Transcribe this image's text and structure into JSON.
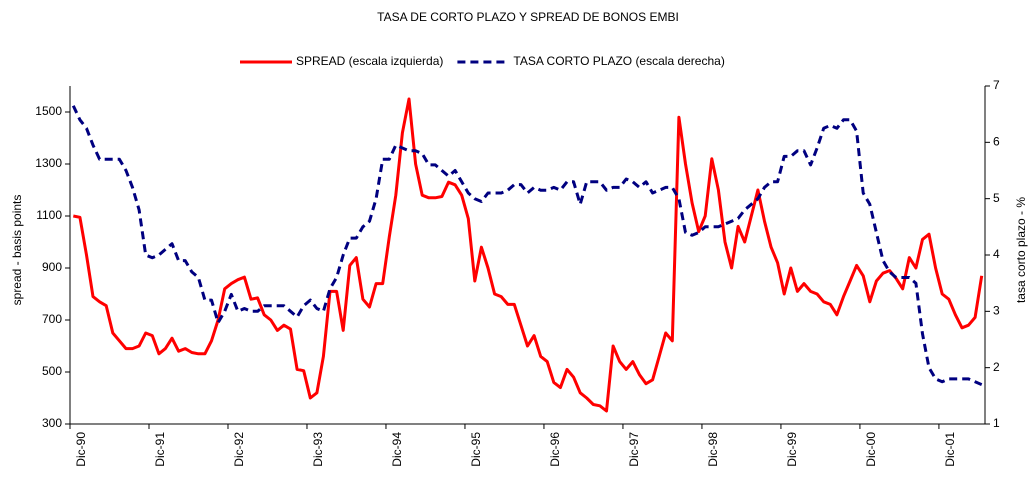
{
  "chart_data": {
    "type": "line",
    "title": "TASA DE CORTO PLAZO Y SPREAD DE BONOS EMBI",
    "y_label": "spread - basis points",
    "y2_label": "tasa corto plazo - %",
    "categories": [
      "Dic-90",
      null,
      null,
      null,
      null,
      null,
      null,
      null,
      null,
      null,
      null,
      null,
      "Dic-91",
      null,
      null,
      null,
      null,
      null,
      null,
      null,
      null,
      null,
      null,
      null,
      "Dic-92",
      null,
      null,
      null,
      null,
      null,
      null,
      null,
      null,
      null,
      null,
      null,
      "Dic-93",
      null,
      null,
      null,
      null,
      null,
      null,
      null,
      null,
      null,
      null,
      null,
      "Dic-94",
      null,
      null,
      null,
      null,
      null,
      null,
      null,
      null,
      null,
      null,
      null,
      "Dic-95",
      null,
      null,
      null,
      null,
      null,
      null,
      null,
      null,
      null,
      null,
      null,
      "Dic-96",
      null,
      null,
      null,
      null,
      null,
      null,
      null,
      null,
      null,
      null,
      null,
      "Dic-97",
      null,
      null,
      null,
      null,
      null,
      null,
      null,
      null,
      null,
      null,
      null,
      "Dic-98",
      null,
      null,
      null,
      null,
      null,
      null,
      null,
      null,
      null,
      null,
      null,
      "Dic-99",
      null,
      null,
      null,
      null,
      null,
      null,
      null,
      null,
      null,
      null,
      null,
      "Dic-00",
      null,
      null,
      null,
      null,
      null,
      null,
      null,
      null,
      null,
      null,
      null,
      "Dic-01",
      null,
      null,
      null,
      null,
      null,
      null
    ],
    "series": [
      {
        "name": "SPREAD (escala izquierda)",
        "color": "#ff0000",
        "dash": false,
        "values": [
          1100,
          1095,
          950,
          790,
          770,
          755,
          650,
          620,
          590,
          590,
          600,
          650,
          640,
          570,
          590,
          630,
          580,
          590,
          575,
          570,
          570,
          620,
          700,
          820,
          840,
          855,
          865,
          780,
          785,
          720,
          700,
          660,
          680,
          665,
          510,
          505,
          400,
          420,
          560,
          810,
          810,
          660,
          910,
          940,
          780,
          750,
          840,
          840,
          1020,
          1180,
          1420,
          1550,
          1300,
          1180,
          1170,
          1170,
          1175,
          1230,
          1220,
          1180,
          1090,
          850,
          980,
          900,
          800,
          790,
          760,
          760,
          680,
          600,
          640,
          560,
          540,
          460,
          440,
          510,
          480,
          420,
          400,
          375,
          370,
          350,
          600,
          540,
          510,
          540,
          490,
          455,
          470,
          560,
          650,
          620,
          1480,
          1300,
          1150,
          1040,
          1100,
          1320,
          1200,
          1000,
          900,
          1060,
          1000,
          1100,
          1200,
          1080,
          980,
          920,
          800,
          900,
          810,
          840,
          810,
          800,
          770,
          760,
          720,
          790,
          850,
          910,
          870,
          770,
          850,
          880,
          890,
          860,
          820,
          940,
          900,
          1010,
          1030,
          900,
          800,
          780,
          720,
          670,
          680,
          710,
          870
        ]
      },
      {
        "name": "TASA CORTO PLAZO (escala derecha)",
        "color": "#000080",
        "dash": true,
        "axis": "y2",
        "values": [
          6.65,
          6.4,
          6.25,
          5.95,
          5.7,
          5.7,
          5.7,
          5.7,
          5.5,
          5.2,
          4.8,
          4.0,
          3.95,
          4.0,
          4.1,
          4.2,
          3.9,
          3.9,
          3.7,
          3.6,
          3.2,
          3.2,
          2.8,
          3.0,
          3.3,
          3.0,
          3.05,
          3.0,
          3.0,
          3.1,
          3.1,
          3.1,
          3.1,
          3.0,
          2.9,
          3.1,
          3.2,
          3.05,
          3.0,
          3.4,
          3.6,
          4.0,
          4.3,
          4.3,
          4.5,
          4.6,
          5.0,
          5.7,
          5.7,
          5.95,
          5.9,
          5.85,
          5.85,
          5.8,
          5.6,
          5.6,
          5.5,
          5.4,
          5.5,
          5.3,
          5.1,
          5.0,
          4.95,
          5.1,
          5.1,
          5.1,
          5.15,
          5.25,
          5.25,
          5.1,
          5.2,
          5.15,
          5.15,
          5.2,
          5.15,
          5.3,
          5.3,
          4.9,
          5.3,
          5.3,
          5.3,
          5.15,
          5.2,
          5.2,
          5.35,
          5.3,
          5.2,
          5.3,
          5.1,
          5.15,
          5.2,
          5.2,
          5.0,
          4.4,
          4.35,
          4.4,
          4.5,
          4.5,
          4.5,
          4.55,
          4.6,
          4.65,
          4.8,
          4.9,
          5.0,
          5.2,
          5.3,
          5.3,
          5.75,
          5.75,
          5.85,
          5.85,
          5.6,
          5.9,
          6.25,
          6.3,
          6.25,
          6.4,
          6.4,
          6.2,
          5.1,
          4.9,
          4.4,
          3.9,
          3.7,
          3.6,
          3.6,
          3.6,
          3.5,
          2.6,
          2.0,
          1.8,
          1.75,
          1.8,
          1.8,
          1.8,
          1.8,
          1.75,
          1.7
        ]
      }
    ],
    "ylim": [
      300,
      1600
    ],
    "yticks": [
      300,
      500,
      700,
      900,
      1100,
      1300,
      1500
    ],
    "y2lim": [
      1,
      7
    ],
    "y2ticks": [
      1,
      2,
      3,
      4,
      5,
      6,
      7
    ],
    "legend": "top"
  }
}
